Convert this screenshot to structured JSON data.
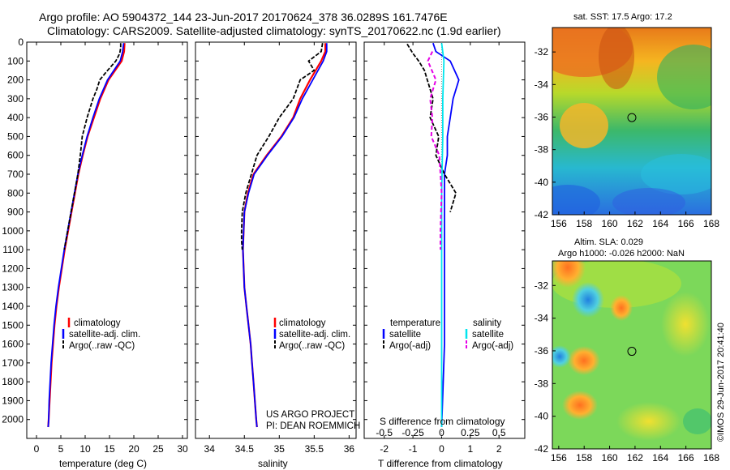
{
  "header": {
    "line1": "Argo profile: AO 5904372_144 23-Jun-2017 20170624_378 36.0289S 161.7476E",
    "line2": "Climatology: CARS2009. Satellite-adjusted climatology: synTS_20170622.nc (1.9d earlier)"
  },
  "colors": {
    "climatology": "#ff0000",
    "satellite": "#0000ff",
    "argo": "#000000",
    "sat_salinity": "#00e5ee",
    "argo_salinity": "#e600e6"
  },
  "legend": {
    "climatology": "climatology",
    "satellite_adj": "satellite-adj. clim.",
    "argo_raw": "Argo(..raw -QC)",
    "temperature": "temperature",
    "salinity": "salinity",
    "satellite": "satellite",
    "argo_adj": "Argo(-adj)"
  },
  "credits": {
    "project": "US ARGO PROJECT",
    "pi": "PI: DEAN ROEMMICH",
    "stamp": "©IMOS 29-Jun-2017 20:41:40"
  },
  "chart_data": [
    {
      "type": "line",
      "xlabel": "temperature (deg C)",
      "ylabel": "",
      "xlim": [
        -2,
        31
      ],
      "ylim": [
        2100,
        0
      ],
      "x_ticks": [
        "0",
        "5",
        "10",
        "15",
        "20",
        "25",
        "30"
      ],
      "y_ticks": [
        "0",
        "100",
        "200",
        "300",
        "400",
        "500",
        "600",
        "700",
        "800",
        "900",
        "1000",
        "1100",
        "1200",
        "1300",
        "1400",
        "1500",
        "1600",
        "1700",
        "1800",
        "1900",
        "2000"
      ],
      "series": [
        {
          "name": "climatology",
          "depth": [
            5,
            50,
            100,
            200,
            300,
            400,
            500,
            600,
            700,
            800,
            900,
            1000,
            1100,
            1200,
            1300,
            1400,
            1500,
            1600,
            1700,
            1800,
            1900,
            2000,
            2040
          ],
          "values": [
            18.1,
            18.0,
            17.5,
            14.8,
            13.1,
            11.8,
            10.5,
            9.5,
            8.6,
            7.9,
            7.2,
            6.5,
            5.8,
            5.2,
            4.6,
            4.1,
            3.7,
            3.4,
            3.1,
            2.9,
            2.7,
            2.5,
            2.4
          ]
        },
        {
          "name": "satellite-adj. clim.",
          "depth": [
            5,
            50,
            100,
            200,
            300,
            400,
            500,
            600,
            700,
            800,
            900,
            1000,
            1100,
            1200,
            1300,
            1400,
            1500,
            1600,
            1700,
            1800,
            1900,
            2000,
            2040
          ],
          "values": [
            17.9,
            17.7,
            17.2,
            14.6,
            12.9,
            11.6,
            10.4,
            9.4,
            8.5,
            7.8,
            7.1,
            6.4,
            5.7,
            5.1,
            4.5,
            4.0,
            3.6,
            3.3,
            3.0,
            2.8,
            2.6,
            2.5,
            2.4
          ]
        },
        {
          "name": "Argo(..raw -QC)",
          "depth": [
            5,
            30,
            60,
            100,
            150,
            200,
            250,
            300,
            350,
            400,
            450,
            500,
            550,
            600,
            700,
            800,
            900,
            1000,
            1100
          ],
          "values": [
            17.3,
            17.3,
            17.1,
            16.3,
            14.6,
            13.0,
            12.4,
            11.6,
            11.0,
            10.4,
            9.9,
            9.4,
            9.2,
            9.0,
            8.5,
            7.8,
            7.1,
            6.4,
            5.7
          ]
        }
      ]
    },
    {
      "type": "line",
      "xlabel": "salinity",
      "ylabel": "",
      "xlim": [
        33.8,
        36.1
      ],
      "ylim": [
        2100,
        0
      ],
      "x_ticks": [
        "34",
        "34.5",
        "35",
        "35.5",
        "36"
      ],
      "series": [
        {
          "name": "climatology",
          "depth": [
            5,
            50,
            100,
            200,
            300,
            400,
            500,
            600,
            700,
            800,
            900,
            1000,
            1100,
            1200,
            1300,
            1400,
            1500,
            1600,
            1700,
            1800,
            1900,
            2000,
            2040
          ],
          "values": [
            35.66,
            35.66,
            35.6,
            35.44,
            35.3,
            35.2,
            35.03,
            34.82,
            34.63,
            34.55,
            34.5,
            34.49,
            34.48,
            34.49,
            34.5,
            34.53,
            34.56,
            34.59,
            34.61,
            34.63,
            34.65,
            34.67,
            34.68
          ]
        },
        {
          "name": "satellite-adj. clim.",
          "depth": [
            5,
            50,
            100,
            200,
            300,
            400,
            500,
            600,
            700,
            800,
            900,
            1000,
            1100,
            1200,
            1300,
            1400,
            1500,
            1600,
            1700,
            1800,
            1900,
            2000,
            2040
          ],
          "values": [
            35.68,
            35.68,
            35.63,
            35.48,
            35.33,
            35.21,
            35.04,
            34.83,
            34.64,
            34.56,
            34.5,
            34.49,
            34.48,
            34.49,
            34.5,
            34.53,
            34.56,
            34.59,
            34.61,
            34.63,
            34.65,
            34.67,
            34.68
          ]
        },
        {
          "name": "Argo(..raw -QC)",
          "depth": [
            5,
            50,
            100,
            150,
            200,
            300,
            400,
            500,
            600,
            700,
            800,
            900,
            1000,
            1050,
            1100
          ],
          "values": [
            35.62,
            35.6,
            35.42,
            35.5,
            35.3,
            35.2,
            35.0,
            34.85,
            34.68,
            34.6,
            34.52,
            34.47,
            34.46,
            34.46,
            34.47
          ]
        }
      ]
    },
    {
      "type": "line",
      "xlabel": "T difference from climatology",
      "x2label": "S difference from climatology",
      "xlim": [
        -2.7,
        2.9
      ],
      "ylim": [
        2100,
        0
      ],
      "x_ticks": [
        "-2",
        "-1",
        "0",
        "1",
        "2"
      ],
      "x2_ticks": [
        "-0.5",
        "-0.25",
        "0",
        "0.25",
        "0.5"
      ],
      "series": [
        {
          "name": "temperature satellite",
          "depth": [
            5,
            50,
            100,
            200,
            300,
            400,
            500,
            600,
            700,
            900,
            1200,
            1600,
            2040
          ],
          "values": [
            -0.3,
            -0.2,
            0.3,
            0.6,
            0.4,
            0.3,
            0.2,
            0.2,
            0.1,
            0.1,
            0.1,
            0.1,
            0.0
          ]
        },
        {
          "name": "temperature Argo(-adj)",
          "depth": [
            10,
            60,
            100,
            150,
            200,
            300,
            400,
            500,
            600,
            700,
            750,
            800,
            850,
            900
          ],
          "values": [
            -1.2,
            -1.0,
            -0.8,
            -0.6,
            -0.5,
            -0.3,
            -0.4,
            -0.1,
            -0.2,
            0.1,
            0.3,
            0.5,
            0.4,
            0.3
          ]
        },
        {
          "name": "salinity satellite",
          "depth": [
            5,
            100,
            300,
            500,
            800,
            1200,
            1600,
            2040
          ],
          "values": [
            0.0,
            0.02,
            0.01,
            0.01,
            0.0,
            0.0,
            0.0,
            0.0
          ]
        },
        {
          "name": "salinity Argo(-adj)",
          "depth": [
            50,
            100,
            200,
            300,
            400,
            500,
            600,
            800,
            1000,
            1100
          ],
          "values": [
            -0.08,
            -0.12,
            -0.05,
            -0.1,
            -0.08,
            -0.09,
            -0.02,
            0.0,
            -0.01,
            -0.01
          ]
        }
      ]
    },
    {
      "type": "heatmap",
      "title": "sat. SST: 17.5 Argo: 17.2",
      "x_ticks": [
        "156",
        "158",
        "160",
        "162",
        "164",
        "166",
        "168"
      ],
      "y_ticks": [
        "-32",
        "-34",
        "-36",
        "-38",
        "-40",
        "-42"
      ],
      "xlim": [
        155.5,
        168
      ],
      "ylim": [
        -42,
        -30.5
      ],
      "marker": {
        "lon": 161.75,
        "lat": -36.03
      }
    },
    {
      "type": "heatmap",
      "title": "Altim. SLA: 0.029",
      "subtitle": "Argo h1000: -0.026 h2000: NaN",
      "x_ticks": [
        "156",
        "158",
        "160",
        "162",
        "164",
        "166",
        "168"
      ],
      "y_ticks": [
        "-32",
        "-34",
        "-36",
        "-38",
        "-40",
        "-42"
      ],
      "xlim": [
        155.5,
        168
      ],
      "ylim": [
        -42,
        -30.5
      ],
      "marker": {
        "lon": 161.75,
        "lat": -36.03
      }
    }
  ]
}
